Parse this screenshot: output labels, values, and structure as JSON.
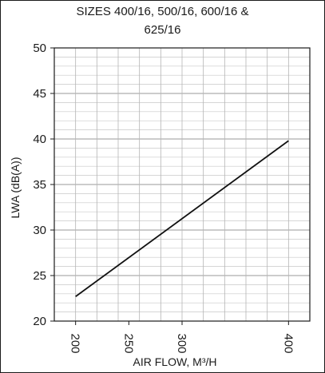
{
  "chart_data": {
    "type": "line",
    "title_lines": [
      "SIZES 400/16,  500/16,  600/16  &",
      "625/16"
    ],
    "xlabel": "AIR FLOW, M³/H",
    "ylabel": "LWA  (dB(A))",
    "xlim": [
      180,
      420
    ],
    "ylim": [
      20,
      50
    ],
    "x_ticks": [
      200,
      250,
      300,
      400
    ],
    "x_tick_labels": [
      "200",
      "250",
      "300",
      "400"
    ],
    "y_ticks": [
      20,
      25,
      30,
      35,
      40,
      45,
      50
    ],
    "y_tick_labels": [
      "20",
      "25",
      "30",
      "35",
      "40",
      "45",
      "50"
    ],
    "grid": true,
    "series": [
      {
        "x": [
          200,
          400
        ],
        "y": [
          22.7,
          39.8
        ]
      }
    ]
  }
}
